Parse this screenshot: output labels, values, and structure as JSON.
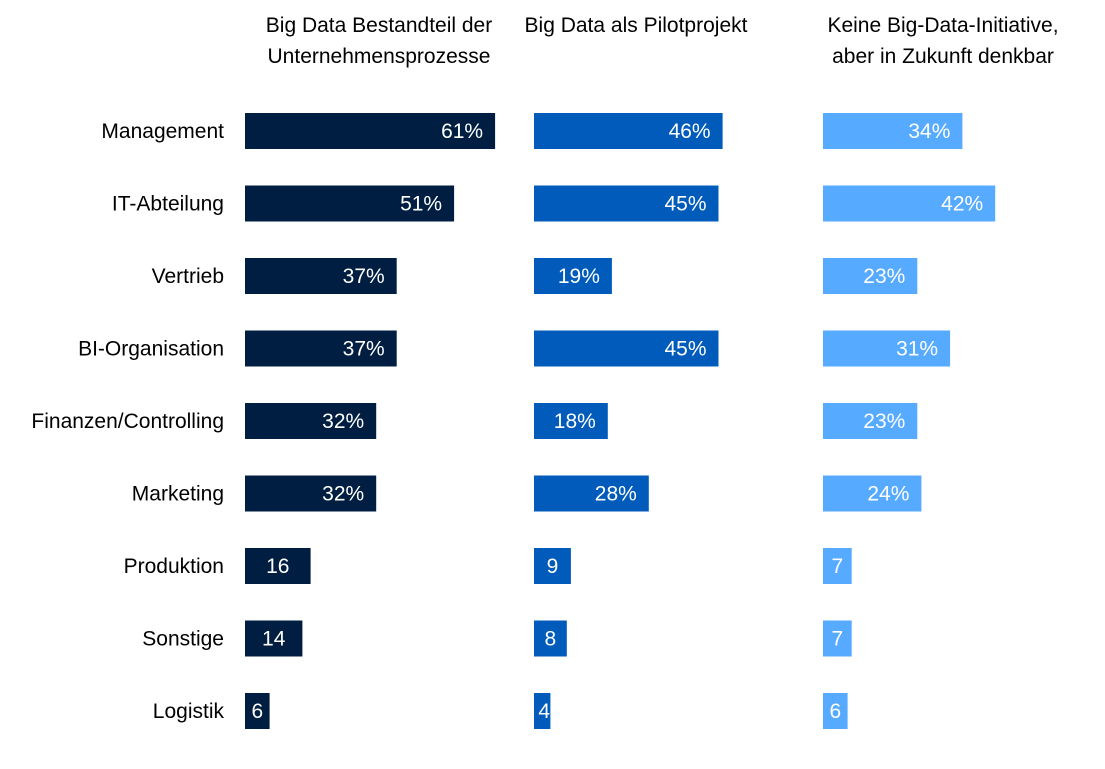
{
  "chart_data": {
    "type": "bar",
    "orientation": "horizontal",
    "layout": "small-multiples",
    "grid": false,
    "legend": "none",
    "categories": [
      "Management",
      "IT-Abteilung",
      "Vertrieb",
      "BI-Organisation",
      "Finanzen/Controlling",
      "Marketing",
      "Produktion",
      "Sonstige",
      "Logistik"
    ],
    "series": [
      {
        "name": "Big Data Bestandteil der Unternehmensprozesse",
        "color": "#001e41",
        "values": [
          61,
          51,
          37,
          37,
          32,
          32,
          16,
          14,
          6
        ],
        "labels": [
          "61%",
          "51%",
          "37%",
          "37%",
          "32%",
          "32%",
          "16",
          "14",
          "6"
        ]
      },
      {
        "name": "Big Data als Pilotprojekt",
        "color": "#005bbb",
        "values": [
          46,
          45,
          19,
          45,
          18,
          28,
          9,
          8,
          4
        ],
        "labels": [
          "46%",
          "45%",
          "19%",
          "45%",
          "18%",
          "28%",
          "9",
          "8",
          "4"
        ]
      },
      {
        "name": "Keine Big-Data-Initiative, aber in Zukunft denkbar",
        "color": "#56aaff",
        "values": [
          34,
          42,
          23,
          31,
          23,
          24,
          7,
          7,
          6
        ],
        "labels": [
          "34%",
          "42%",
          "23%",
          "31%",
          "23%",
          "24%",
          "7",
          "7",
          "6"
        ]
      }
    ]
  }
}
